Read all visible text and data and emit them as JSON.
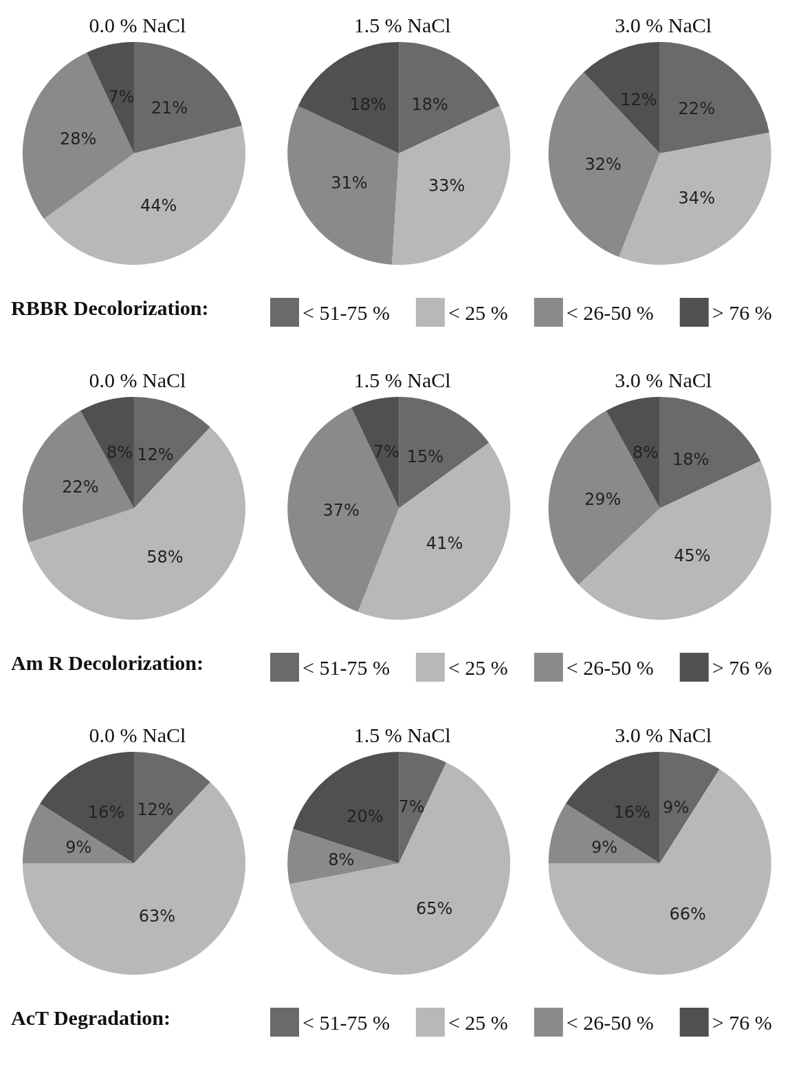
{
  "chart_data": [
    {
      "type": "pie",
      "legend_title": "RBBR Decolorization:",
      "legend": "bottom",
      "data_labels": false,
      "categories": [
        "< 51-75 %",
        "< 25 %",
        "< 26-50 %",
        "> 76 %"
      ],
      "colors": [
        "#6a6a6a",
        "#b8b8b8",
        "#8a8a8a",
        "#505050"
      ],
      "series": [
        {
          "name": "0.0 % NaCl",
          "values": [
            21,
            44,
            28,
            7
          ],
          "value_labels": [
            "21%",
            "44%",
            "28%",
            "7%"
          ]
        },
        {
          "name": "1.5 % NaCl",
          "values": [
            18,
            33,
            31,
            18
          ],
          "value_labels": [
            "18%",
            "33%",
            "31%",
            "18%"
          ]
        },
        {
          "name": "3.0 % NaCl",
          "values": [
            22,
            34,
            32,
            12
          ],
          "value_labels": [
            "22%",
            "34%",
            "32%",
            "12%"
          ]
        }
      ]
    },
    {
      "type": "pie",
      "legend_title": "Am R Decolorization:",
      "legend": "bottom",
      "data_labels": false,
      "categories": [
        "< 51-75 %",
        "< 25 %",
        "< 26-50 %",
        "> 76 %"
      ],
      "colors": [
        "#6a6a6a",
        "#b8b8b8",
        "#8a8a8a",
        "#505050"
      ],
      "series": [
        {
          "name": "0.0 % NaCl",
          "values": [
            12,
            58,
            22,
            8
          ],
          "value_labels": [
            "12%",
            "58%",
            "22%",
            "8%"
          ]
        },
        {
          "name": "1.5 % NaCl",
          "values": [
            15,
            41,
            37,
            7
          ],
          "value_labels": [
            "15%",
            "41%",
            "37%",
            "7%"
          ]
        },
        {
          "name": "3.0 % NaCl",
          "values": [
            18,
            45,
            29,
            8
          ],
          "value_labels": [
            "18%",
            "45%",
            "29%",
            "8%"
          ]
        }
      ]
    },
    {
      "type": "pie",
      "legend_title": "AcT Degradation:",
      "legend": "bottom",
      "data_labels": false,
      "categories": [
        "< 51-75 %",
        "< 25 %",
        "< 26-50 %",
        "> 76 %"
      ],
      "colors": [
        "#6a6a6a",
        "#b8b8b8",
        "#8a8a8a",
        "#505050"
      ],
      "series": [
        {
          "name": "0.0 % NaCl",
          "values": [
            12,
            63,
            9,
            16
          ],
          "value_labels": [
            "12%",
            "63%",
            "9%",
            "16%"
          ]
        },
        {
          "name": "1.5 % NaCl",
          "values": [
            7,
            65,
            8,
            20
          ],
          "value_labels": [
            "7%",
            "65%",
            "8%",
            "20%"
          ]
        },
        {
          "name": "3.0 % NaCl",
          "values": [
            9,
            66,
            9,
            16
          ],
          "value_labels": [
            "9%",
            "66%",
            "9%",
            "16%"
          ]
        }
      ]
    }
  ]
}
